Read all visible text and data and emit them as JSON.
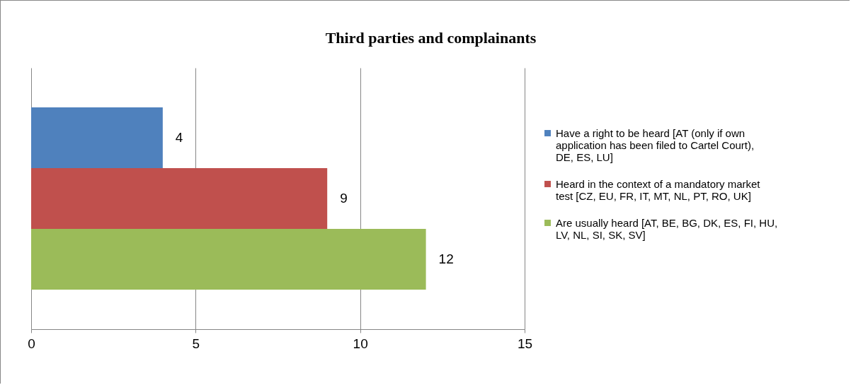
{
  "chart_data": {
    "type": "bar",
    "title": "Third parties and complainants",
    "orientation": "horizontal",
    "categories": [
      null
    ],
    "series": [
      {
        "name": "Have a right to be heard [AT (only if own application has been filed to Cartel Court), DE, ES, LU]",
        "color": "#4f81bd",
        "values": [
          4
        ]
      },
      {
        "name": "Heard in the context of a mandatory market test [CZ, EU, FR, IT, MT, NL, PT, RO, UK]",
        "color": "#c0504d",
        "values": [
          9
        ]
      },
      {
        "name": "Are usually heard [AT, BE, BG, DK, ES, FI, HU, LV, NL, SI, SK, SV]",
        "color": "#9bbb59",
        "values": [
          12
        ]
      }
    ],
    "xlim": [
      0,
      15
    ],
    "xticks": [
      0,
      5,
      10,
      15
    ],
    "grid": "x",
    "legend": "right",
    "data_labels": true
  }
}
